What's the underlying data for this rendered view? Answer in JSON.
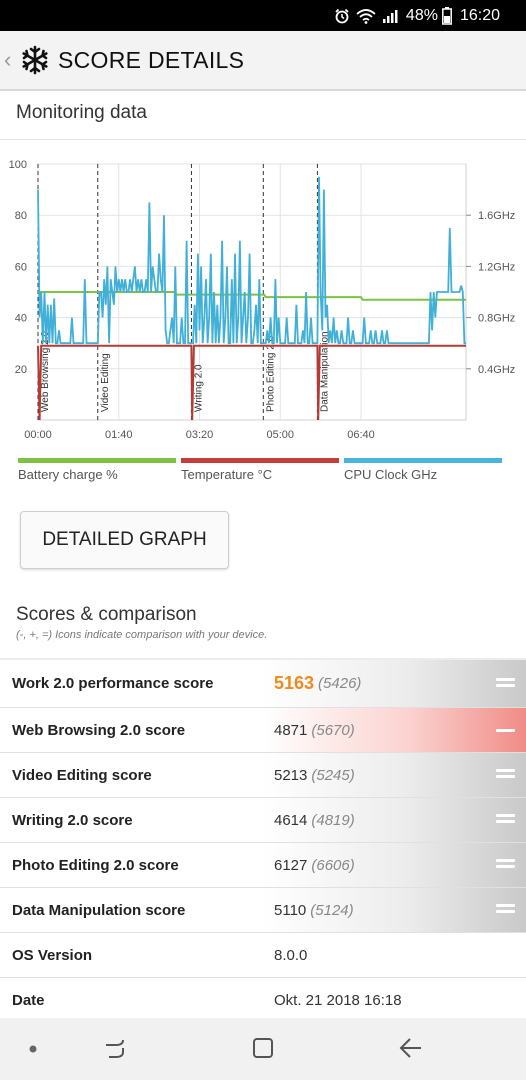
{
  "status": {
    "battery": "48%",
    "time": "16:20"
  },
  "header": {
    "title": "SCORE DETAILS"
  },
  "monitoring": {
    "title": "Monitoring data"
  },
  "chart_data": {
    "type": "line",
    "x_ticks": [
      "00:00",
      "01:40",
      "03:20",
      "05:00",
      "06:40"
    ],
    "x_range_seconds": [
      0,
      530
    ],
    "left_axis": {
      "ticks": [
        "20",
        "40",
        "60",
        "80",
        "100"
      ],
      "range": [
        0,
        100
      ]
    },
    "right_axis": {
      "ticks": [
        "0.4GHz",
        "0.8GHz",
        "1.2GHz",
        "1.6GHz"
      ],
      "range_ghz": [
        0,
        2.0
      ]
    },
    "phases": [
      {
        "label": "Web Browsing 2.0",
        "start_s": 0
      },
      {
        "label": "Video Editing",
        "start_s": 74
      },
      {
        "label": "Writing 2.0",
        "start_s": 190
      },
      {
        "label": "Photo Editing 2.0",
        "start_s": 279
      },
      {
        "label": "Data Manipulation",
        "start_s": 346
      }
    ],
    "series": [
      {
        "name": "Battery charge %",
        "color": "#7dc242",
        "points": [
          [
            0,
            50
          ],
          [
            170,
            50
          ],
          [
            172,
            49
          ],
          [
            280,
            49
          ],
          [
            282,
            48
          ],
          [
            400,
            48
          ],
          [
            402,
            47
          ],
          [
            530,
            47
          ]
        ]
      },
      {
        "name": "Temperature °C",
        "color": "#b53a35",
        "points": [
          [
            0,
            29
          ],
          [
            2,
            0
          ],
          [
            4,
            29
          ],
          [
            190,
            29
          ],
          [
            191,
            0
          ],
          [
            193,
            29
          ],
          [
            346,
            29
          ],
          [
            347,
            0
          ],
          [
            349,
            29
          ],
          [
            530,
            29
          ]
        ]
      },
      {
        "name": "CPU Clock GHz",
        "color": "#40b0d8",
        "points": [
          [
            0,
            1.8
          ],
          [
            2,
            0.8
          ],
          [
            4,
            1.0
          ],
          [
            6,
            0.6
          ],
          [
            8,
            1.0
          ],
          [
            10,
            0.6
          ],
          [
            12,
            0.9
          ],
          [
            14,
            0.6
          ],
          [
            16,
            0.9
          ],
          [
            18,
            0.6
          ],
          [
            20,
            0.95
          ],
          [
            22,
            0.6
          ],
          [
            24,
            0.6
          ],
          [
            26,
            0.7
          ],
          [
            28,
            0.6
          ],
          [
            30,
            0.6
          ],
          [
            32,
            0.6
          ],
          [
            34,
            0.6
          ],
          [
            36,
            0.6
          ],
          [
            38,
            0.6
          ],
          [
            40,
            0.6
          ],
          [
            42,
            0.8
          ],
          [
            44,
            0.6
          ],
          [
            46,
            0.6
          ],
          [
            48,
            0.6
          ],
          [
            50,
            0.6
          ],
          [
            52,
            0.6
          ],
          [
            54,
            0.6
          ],
          [
            56,
            0.6
          ],
          [
            58,
            1.1
          ],
          [
            60,
            0.6
          ],
          [
            62,
            0.6
          ],
          [
            64,
            0.6
          ],
          [
            66,
            0.6
          ],
          [
            68,
            0.6
          ],
          [
            70,
            0.6
          ],
          [
            72,
            0.6
          ],
          [
            74,
            0.6
          ],
          [
            76,
            1.0
          ],
          [
            78,
            1.0
          ],
          [
            80,
            0.8
          ],
          [
            82,
            1.1
          ],
          [
            84,
            0.9
          ],
          [
            86,
            1.2
          ],
          [
            88,
            0.6
          ],
          [
            90,
            1.1
          ],
          [
            92,
            1.0
          ],
          [
            94,
            0.9
          ],
          [
            96,
            1.2
          ],
          [
            98,
            1.0
          ],
          [
            100,
            1.1
          ],
          [
            102,
            1.0
          ],
          [
            104,
            1.1
          ],
          [
            106,
            1.0
          ],
          [
            108,
            1.1
          ],
          [
            110,
            1.0
          ],
          [
            112,
            1.0
          ],
          [
            114,
            1.1
          ],
          [
            116,
            1.0
          ],
          [
            118,
            1.1
          ],
          [
            120,
            1.2
          ],
          [
            122,
            1.0
          ],
          [
            124,
            1.1
          ],
          [
            126,
            1.0
          ],
          [
            128,
            1.1
          ],
          [
            130,
            1.0
          ],
          [
            132,
            1.0
          ],
          [
            134,
            1.1
          ],
          [
            136,
            1.0
          ],
          [
            138,
            1.7
          ],
          [
            140,
            1.0
          ],
          [
            142,
            1.2
          ],
          [
            144,
            1.1
          ],
          [
            146,
            1.0
          ],
          [
            148,
            1.0
          ],
          [
            150,
            1.3
          ],
          [
            152,
            1.1
          ],
          [
            154,
            1.0
          ],
          [
            156,
            1.6
          ],
          [
            158,
            0.7
          ],
          [
            160,
            0.6
          ],
          [
            162,
            0.6
          ],
          [
            164,
            0.7
          ],
          [
            166,
            0.8
          ],
          [
            168,
            0.6
          ],
          [
            170,
            1.2
          ],
          [
            172,
            0.6
          ],
          [
            174,
            0.6
          ],
          [
            176,
            0.6
          ],
          [
            178,
            0.8
          ],
          [
            180,
            0.6
          ],
          [
            182,
            0.6
          ],
          [
            184,
            1.4
          ],
          [
            186,
            0.6
          ],
          [
            188,
            0.6
          ],
          [
            190,
            0.6
          ],
          [
            192,
            0.6
          ],
          [
            194,
            0.9
          ],
          [
            196,
            0.6
          ],
          [
            198,
            1.3
          ],
          [
            200,
            0.7
          ],
          [
            202,
            1.2
          ],
          [
            204,
            0.6
          ],
          [
            206,
            0.8
          ],
          [
            208,
            1.1
          ],
          [
            210,
            0.6
          ],
          [
            212,
            0.8
          ],
          [
            214,
            1.3
          ],
          [
            216,
            0.6
          ],
          [
            218,
            1.0
          ],
          [
            220,
            0.6
          ],
          [
            222,
            0.9
          ],
          [
            224,
            0.6
          ],
          [
            226,
            0.8
          ],
          [
            228,
            1.4
          ],
          [
            230,
            0.6
          ],
          [
            232,
            0.8
          ],
          [
            234,
            1.2
          ],
          [
            236,
            0.6
          ],
          [
            238,
            0.6
          ],
          [
            240,
            1.1
          ],
          [
            242,
            0.6
          ],
          [
            244,
            1.3
          ],
          [
            246,
            0.6
          ],
          [
            248,
            0.8
          ],
          [
            250,
            1.4
          ],
          [
            252,
            0.6
          ],
          [
            254,
            0.8
          ],
          [
            256,
            1.0
          ],
          [
            258,
            0.6
          ],
          [
            260,
            0.8
          ],
          [
            262,
            1.3
          ],
          [
            264,
            0.6
          ],
          [
            266,
            0.6
          ],
          [
            268,
            0.7
          ],
          [
            270,
            0.9
          ],
          [
            272,
            0.6
          ],
          [
            274,
            1.1
          ],
          [
            276,
            0.6
          ],
          [
            278,
            0.6
          ],
          [
            280,
            0.6
          ],
          [
            282,
            0.6
          ],
          [
            284,
            0.7
          ],
          [
            286,
            0.6
          ],
          [
            288,
            0.8
          ],
          [
            290,
            0.6
          ],
          [
            292,
            0.6
          ],
          [
            294,
            1.1
          ],
          [
            296,
            0.6
          ],
          [
            298,
            0.8
          ],
          [
            300,
            0.6
          ],
          [
            302,
            0.6
          ],
          [
            304,
            0.6
          ],
          [
            306,
            0.6
          ],
          [
            308,
            0.8
          ],
          [
            310,
            0.6
          ],
          [
            312,
            0.6
          ],
          [
            314,
            0.6
          ],
          [
            316,
            0.6
          ],
          [
            318,
            0.6
          ],
          [
            320,
            0.9
          ],
          [
            322,
            0.6
          ],
          [
            324,
            0.6
          ],
          [
            326,
            0.6
          ],
          [
            328,
            0.7
          ],
          [
            330,
            0.6
          ],
          [
            332,
            1.0
          ],
          [
            334,
            0.6
          ],
          [
            336,
            0.6
          ],
          [
            338,
            0.8
          ],
          [
            340,
            0.6
          ],
          [
            342,
            0.6
          ],
          [
            344,
            0.6
          ],
          [
            346,
            0.6
          ],
          [
            348,
            1.9
          ],
          [
            350,
            1.0
          ],
          [
            352,
            0.7
          ],
          [
            354,
            1.8
          ],
          [
            356,
            0.8
          ],
          [
            358,
            0.9
          ],
          [
            360,
            0.6
          ],
          [
            362,
            0.7
          ],
          [
            364,
            0.6
          ],
          [
            366,
            0.8
          ],
          [
            368,
            0.6
          ],
          [
            370,
            0.7
          ],
          [
            372,
            0.6
          ],
          [
            374,
            0.6
          ],
          [
            376,
            0.7
          ],
          [
            378,
            0.6
          ],
          [
            380,
            0.6
          ],
          [
            382,
            0.6
          ],
          [
            384,
            0.8
          ],
          [
            386,
            0.6
          ],
          [
            388,
            0.6
          ],
          [
            390,
            0.7
          ],
          [
            392,
            0.6
          ],
          [
            394,
            0.6
          ],
          [
            396,
            0.6
          ],
          [
            398,
            0.6
          ],
          [
            400,
            0.6
          ],
          [
            402,
            0.6
          ],
          [
            404,
            0.8
          ],
          [
            406,
            0.6
          ],
          [
            408,
            0.6
          ],
          [
            410,
            0.6
          ],
          [
            412,
            0.7
          ],
          [
            414,
            0.6
          ],
          [
            416,
            0.6
          ],
          [
            418,
            0.7
          ],
          [
            420,
            0.6
          ],
          [
            422,
            0.6
          ],
          [
            424,
            0.6
          ],
          [
            426,
            0.7
          ],
          [
            428,
            0.6
          ],
          [
            430,
            0.6
          ],
          [
            432,
            0.7
          ],
          [
            434,
            0.6
          ],
          [
            436,
            0.6
          ],
          [
            438,
            0.6
          ],
          [
            440,
            0.6
          ],
          [
            442,
            0.6
          ],
          [
            444,
            0.6
          ],
          [
            446,
            0.6
          ],
          [
            448,
            0.6
          ],
          [
            450,
            0.6
          ],
          [
            452,
            0.6
          ],
          [
            454,
            0.6
          ],
          [
            456,
            0.6
          ],
          [
            458,
            0.6
          ],
          [
            460,
            0.6
          ],
          [
            462,
            0.6
          ],
          [
            464,
            0.6
          ],
          [
            466,
            0.6
          ],
          [
            468,
            0.6
          ],
          [
            470,
            0.6
          ],
          [
            472,
            0.6
          ],
          [
            474,
            0.6
          ],
          [
            476,
            0.6
          ],
          [
            478,
            0.6
          ],
          [
            480,
            0.6
          ],
          [
            482,
            0.6
          ],
          [
            484,
            0.6
          ],
          [
            486,
            1.0
          ],
          [
            488,
            0.7
          ],
          [
            490,
            1.0
          ],
          [
            492,
            0.8
          ],
          [
            494,
            1.0
          ],
          [
            496,
            1.0
          ],
          [
            498,
            1.0
          ],
          [
            500,
            1.0
          ],
          [
            502,
            1.0
          ],
          [
            504,
            1.0
          ],
          [
            506,
            1.0
          ],
          [
            508,
            1.0
          ],
          [
            510,
            1.5
          ],
          [
            512,
            1.0
          ],
          [
            514,
            1.0
          ],
          [
            516,
            1.0
          ],
          [
            518,
            1.0
          ],
          [
            520,
            1.0
          ],
          [
            522,
            1.0
          ],
          [
            524,
            1.05
          ],
          [
            526,
            1.0
          ],
          [
            528,
            0.6
          ],
          [
            530,
            0.6
          ]
        ]
      }
    ]
  },
  "legend": [
    {
      "label": "Battery charge %",
      "color": "#7dc242"
    },
    {
      "label": "Temperature °C",
      "color": "#c43d39"
    },
    {
      "label": "CPU Clock GHz",
      "color": "#48b3dc"
    }
  ],
  "detailed_graph_label": "DETAILED GRAPH",
  "scores": {
    "title": "Scores & comparison",
    "subtitle": "(-, +, =) Icons indicate comparison with your device.",
    "rows": [
      {
        "label": "Work 2.0 performance score",
        "value": "5163",
        "ref": "(5426)",
        "cmp": "equal"
      },
      {
        "label": "Web Browsing 2.0 score",
        "value": "4871",
        "ref": "(5670)",
        "cmp": "minus"
      },
      {
        "label": "Video Editing score",
        "value": "5213",
        "ref": "(5245)",
        "cmp": "equal"
      },
      {
        "label": "Writing 2.0 score",
        "value": "4614",
        "ref": "(4819)",
        "cmp": "equal"
      },
      {
        "label": "Photo Editing 2.0 score",
        "value": "6127",
        "ref": "(6606)",
        "cmp": "equal"
      },
      {
        "label": "Data Manipulation score",
        "value": "5110",
        "ref": "(5124)",
        "cmp": "equal"
      },
      {
        "label": "OS Version",
        "value": "8.0.0"
      },
      {
        "label": "Date",
        "value": "Okt. 21 2018 16:18"
      }
    ]
  }
}
